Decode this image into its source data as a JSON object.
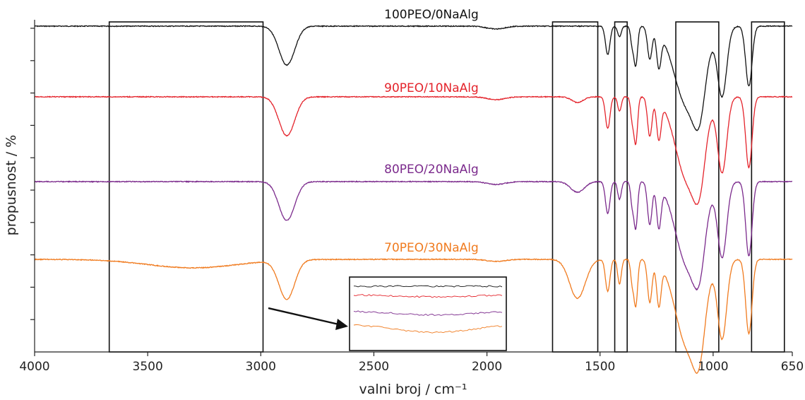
{
  "chart_data": {
    "type": "line",
    "xlabel": "valni broj / cm⁻¹",
    "ylabel": "propusnost / %",
    "xlim": [
      4000,
      650
    ],
    "x_reversed": true,
    "x_ticks": [
      4000,
      3500,
      3000,
      2500,
      2000,
      1500,
      1000,
      650
    ],
    "x_tick_labels": [
      "4000",
      "3500",
      "3000",
      "2500",
      "2000",
      "1500",
      "1000",
      "650"
    ],
    "y_tick_count": 10,
    "grid": false,
    "series": [
      {
        "name": "100PEO/0NaAlg",
        "color": "#111111",
        "baseline": 0.0,
        "inset_offset": 0.0,
        "peaks": [
          [
            2885,
            0.55,
            35
          ],
          [
            1960,
            0.04,
            40
          ],
          [
            1466,
            0.4,
            10
          ],
          [
            1414,
            0.15,
            8
          ],
          [
            1358,
            0.25,
            7
          ],
          [
            1342,
            0.55,
            8
          ],
          [
            1280,
            0.45,
            10
          ],
          [
            1240,
            0.5,
            10
          ],
          [
            1110,
            1.15,
            60
          ],
          [
            1060,
            0.6,
            25
          ],
          [
            960,
            0.95,
            20
          ],
          [
            842,
            0.85,
            14
          ]
        ]
      },
      {
        "name": "90PEO/10NaAlg",
        "color": "#e4232b",
        "baseline": 1.0,
        "inset_offset": 0.3,
        "peaks": [
          [
            2885,
            0.55,
            35
          ],
          [
            1960,
            0.04,
            40
          ],
          [
            1600,
            0.08,
            25
          ],
          [
            1466,
            0.45,
            10
          ],
          [
            1414,
            0.2,
            8
          ],
          [
            1358,
            0.3,
            7
          ],
          [
            1342,
            0.65,
            8
          ],
          [
            1280,
            0.55,
            10
          ],
          [
            1240,
            0.55,
            10
          ],
          [
            1110,
            1.2,
            55
          ],
          [
            1060,
            0.65,
            25
          ],
          [
            960,
            1.05,
            20
          ],
          [
            842,
            1.0,
            14
          ]
        ]
      },
      {
        "name": "80PEO/20NaAlg",
        "color": "#7b2a8c",
        "baseline": 2.2,
        "inset_offset": 0.55,
        "peaks": [
          [
            2885,
            0.55,
            35
          ],
          [
            1960,
            0.04,
            40
          ],
          [
            1600,
            0.15,
            30
          ],
          [
            1466,
            0.45,
            10
          ],
          [
            1414,
            0.25,
            8
          ],
          [
            1358,
            0.3,
            7
          ],
          [
            1342,
            0.65,
            8
          ],
          [
            1280,
            0.6,
            10
          ],
          [
            1240,
            0.6,
            10
          ],
          [
            1110,
            1.2,
            55
          ],
          [
            1060,
            0.65,
            25
          ],
          [
            960,
            1.05,
            20
          ],
          [
            842,
            1.05,
            14
          ]
        ]
      },
      {
        "name": "70PEO/30NaAlg",
        "color": "#f07b1f",
        "baseline": 3.3,
        "inset_offset": 1.0,
        "peaks": [
          [
            3300,
            0.12,
            200
          ],
          [
            2885,
            0.55,
            35
          ],
          [
            1960,
            0.03,
            40
          ],
          [
            1600,
            0.55,
            35
          ],
          [
            1466,
            0.45,
            10
          ],
          [
            1414,
            0.35,
            8
          ],
          [
            1358,
            0.3,
            7
          ],
          [
            1342,
            0.65,
            8
          ],
          [
            1280,
            0.6,
            10
          ],
          [
            1240,
            0.6,
            10
          ],
          [
            1110,
            1.25,
            55
          ],
          [
            1060,
            0.7,
            25
          ],
          [
            960,
            1.1,
            20
          ],
          [
            842,
            1.05,
            14
          ]
        ]
      }
    ],
    "highlight_regions": [
      [
        3670,
        2990
      ],
      [
        1710,
        1510
      ],
      [
        1435,
        1380
      ],
      [
        1165,
        975
      ],
      [
        830,
        685
      ]
    ],
    "inset_range": [
      3670,
      2990
    ]
  }
}
